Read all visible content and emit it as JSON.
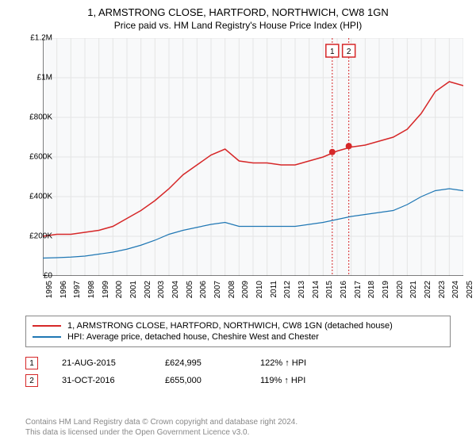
{
  "title": {
    "main": "1, ARMSTRONG CLOSE, HARTFORD, NORTHWICH, CW8 1GN",
    "sub": "Price paid vs. HM Land Registry's House Price Index (HPI)"
  },
  "chart": {
    "type": "line",
    "background_color": "#f8f9fa",
    "grid_color": "#e5e5e5",
    "ylim": [
      0,
      1200000
    ],
    "ytick_step": 200000,
    "y_labels": [
      "£0",
      "£200K",
      "£400K",
      "£600K",
      "£800K",
      "£1M",
      "£1.2M"
    ],
    "x_years": [
      "1995",
      "1996",
      "1997",
      "1998",
      "1999",
      "2000",
      "2001",
      "2002",
      "2003",
      "2004",
      "2005",
      "2006",
      "2007",
      "2008",
      "2009",
      "2010",
      "2011",
      "2012",
      "2013",
      "2014",
      "2015",
      "2016",
      "2017",
      "2018",
      "2019",
      "2020",
      "2021",
      "2022",
      "2023",
      "2024",
      "2025"
    ],
    "series": [
      {
        "name": "price_paid",
        "label": "1, ARMSTRONG CLOSE, HARTFORD, NORTHWICH, CW8 1GN (detached house)",
        "color": "#d62728",
        "line_width": 1.5,
        "values": [
          200000,
          210000,
          210000,
          220000,
          230000,
          250000,
          290000,
          330000,
          380000,
          440000,
          510000,
          560000,
          610000,
          640000,
          580000,
          570000,
          570000,
          560000,
          560000,
          580000,
          600000,
          630000,
          650000,
          660000,
          680000,
          700000,
          740000,
          820000,
          930000,
          980000,
          960000
        ]
      },
      {
        "name": "hpi",
        "label": "HPI: Average price, detached house, Cheshire West and Chester",
        "color": "#1f77b4",
        "line_width": 1.2,
        "values": [
          90000,
          92000,
          95000,
          100000,
          110000,
          120000,
          135000,
          155000,
          180000,
          210000,
          230000,
          245000,
          260000,
          270000,
          250000,
          250000,
          250000,
          250000,
          250000,
          260000,
          270000,
          285000,
          300000,
          310000,
          320000,
          330000,
          360000,
          400000,
          430000,
          440000,
          430000
        ]
      }
    ],
    "markers": [
      {
        "label": "1",
        "year_index": 20.65,
        "value": 624995,
        "color": "#d62728"
      },
      {
        "label": "2",
        "year_index": 21.83,
        "value": 655000,
        "color": "#d62728"
      }
    ]
  },
  "legend": {
    "rows": [
      {
        "color": "#d62728",
        "label": "1, ARMSTRONG CLOSE, HARTFORD, NORTHWICH, CW8 1GN (detached house)"
      },
      {
        "color": "#1f77b4",
        "label": "HPI: Average price, detached house, Cheshire West and Chester"
      }
    ]
  },
  "data_table": {
    "rows": [
      {
        "marker": "1",
        "marker_color": "#d62728",
        "date": "21-AUG-2015",
        "price": "£624,995",
        "pct": "122% ↑ HPI"
      },
      {
        "marker": "2",
        "marker_color": "#d62728",
        "date": "31-OCT-2016",
        "price": "£655,000",
        "pct": "119% ↑ HPI"
      }
    ]
  },
  "footer": {
    "line1": "Contains HM Land Registry data © Crown copyright and database right 2024.",
    "line2": "This data is licensed under the Open Government Licence v3.0."
  }
}
